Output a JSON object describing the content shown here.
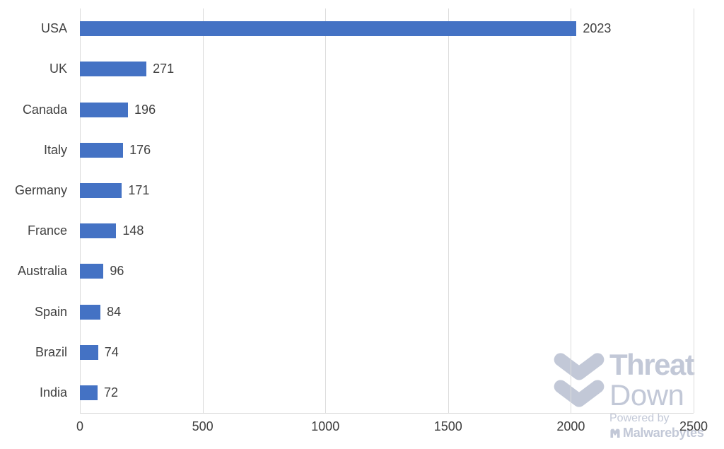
{
  "chart_data": {
    "type": "bar",
    "orientation": "horizontal",
    "title": "",
    "xlabel": "",
    "ylabel": "",
    "categories": [
      "USA",
      "UK",
      "Canada",
      "Italy",
      "Germany",
      "France",
      "Australia",
      "Spain",
      "Brazil",
      "India"
    ],
    "values": [
      2023,
      271,
      196,
      176,
      171,
      148,
      96,
      84,
      74,
      72
    ],
    "x_ticks": [
      0,
      500,
      1000,
      1500,
      2000,
      2500
    ],
    "xlim": [
      0,
      2500
    ],
    "grid": "vertical",
    "legend": "none",
    "bar_color": "#4472C4",
    "gridline_color": "#DBDBDB",
    "text_color": "#404040"
  },
  "logo": {
    "line1": "Threat",
    "line2": "Down",
    "powered_by": "Powered by",
    "brand": "Malwarebytes",
    "color": "#C2C8D7"
  }
}
